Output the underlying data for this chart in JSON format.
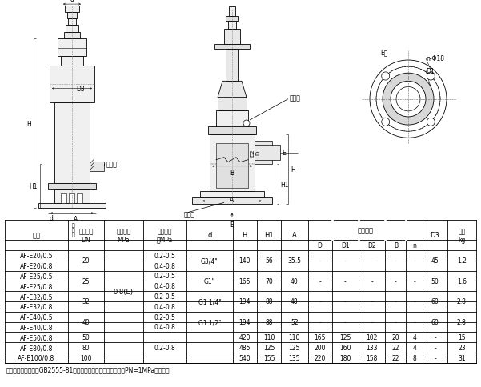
{
  "note": "注：法兰连接尺寸按GB2555-81（一般用途管法兰连接尺寸）中PN=1MPa的规定。",
  "table_data": [
    [
      "AF-E20/0.5",
      "20",
      "",
      "0.2-0.5",
      "G3/4\"",
      "140",
      "56",
      "35.5",
      "-",
      "-",
      "-",
      "-",
      "-",
      "45",
      "1.2"
    ],
    [
      "AF-E20/0.8",
      "",
      "",
      "0.4-0.8",
      "",
      "",
      "",
      "",
      "-",
      "-",
      "-",
      "-",
      "-",
      "",
      ""
    ],
    [
      "AF-E25/0.5",
      "25",
      "",
      "0.2-0.5",
      "G1\"",
      "165",
      "70",
      "40",
      "-",
      "-",
      "-",
      "-",
      "-",
      "50",
      "1.6"
    ],
    [
      "AF-E25/0.8",
      "",
      "",
      "0.4-0.8",
      "",
      "",
      "",
      "",
      "-",
      "-",
      "-",
      "-",
      "-",
      "",
      ""
    ],
    [
      "AF-E32/0.5",
      "32",
      "",
      "0.2-0.5",
      "G1 1/4\"",
      "194",
      "88",
      "48",
      "-",
      "-",
      "-",
      "-",
      "-",
      "60",
      "2.8"
    ],
    [
      "AF-E32/0.8",
      "",
      "0.8(E)",
      "0.4-0.8",
      "",
      "",
      "",
      "",
      "-",
      "-",
      "-",
      "-",
      "-",
      "",
      ""
    ],
    [
      "AF-E40/0.5",
      "40",
      "",
      "0.2-0.5",
      "G1 1/2\"",
      "194",
      "88",
      "52",
      "-",
      "-",
      "-",
      "-",
      "-",
      "60",
      "2.8"
    ],
    [
      "AF-E40/0.8",
      "",
      "",
      "0.4-0.8",
      "",
      "",
      "",
      "",
      "-",
      "-",
      "-",
      "-",
      "-",
      "",
      ""
    ],
    [
      "AF-E50/0.8",
      "50",
      "",
      "",
      "",
      "420",
      "110",
      "110",
      "165",
      "125",
      "102",
      "20",
      "4",
      "-",
      "15"
    ],
    [
      "AF-E80/0.8",
      "80",
      "",
      "0.2-0.8",
      "",
      "485",
      "125",
      "125",
      "200",
      "160",
      "133",
      "22",
      "4",
      "-",
      "23"
    ],
    [
      "AF-E100/0.8",
      "100",
      "",
      "",
      "",
      "540",
      "155",
      "135",
      "220",
      "180",
      "158",
      "22",
      "8",
      "-",
      "31"
    ]
  ],
  "bg_color": "#ffffff",
  "lc": "#000000",
  "tc": "#000000"
}
